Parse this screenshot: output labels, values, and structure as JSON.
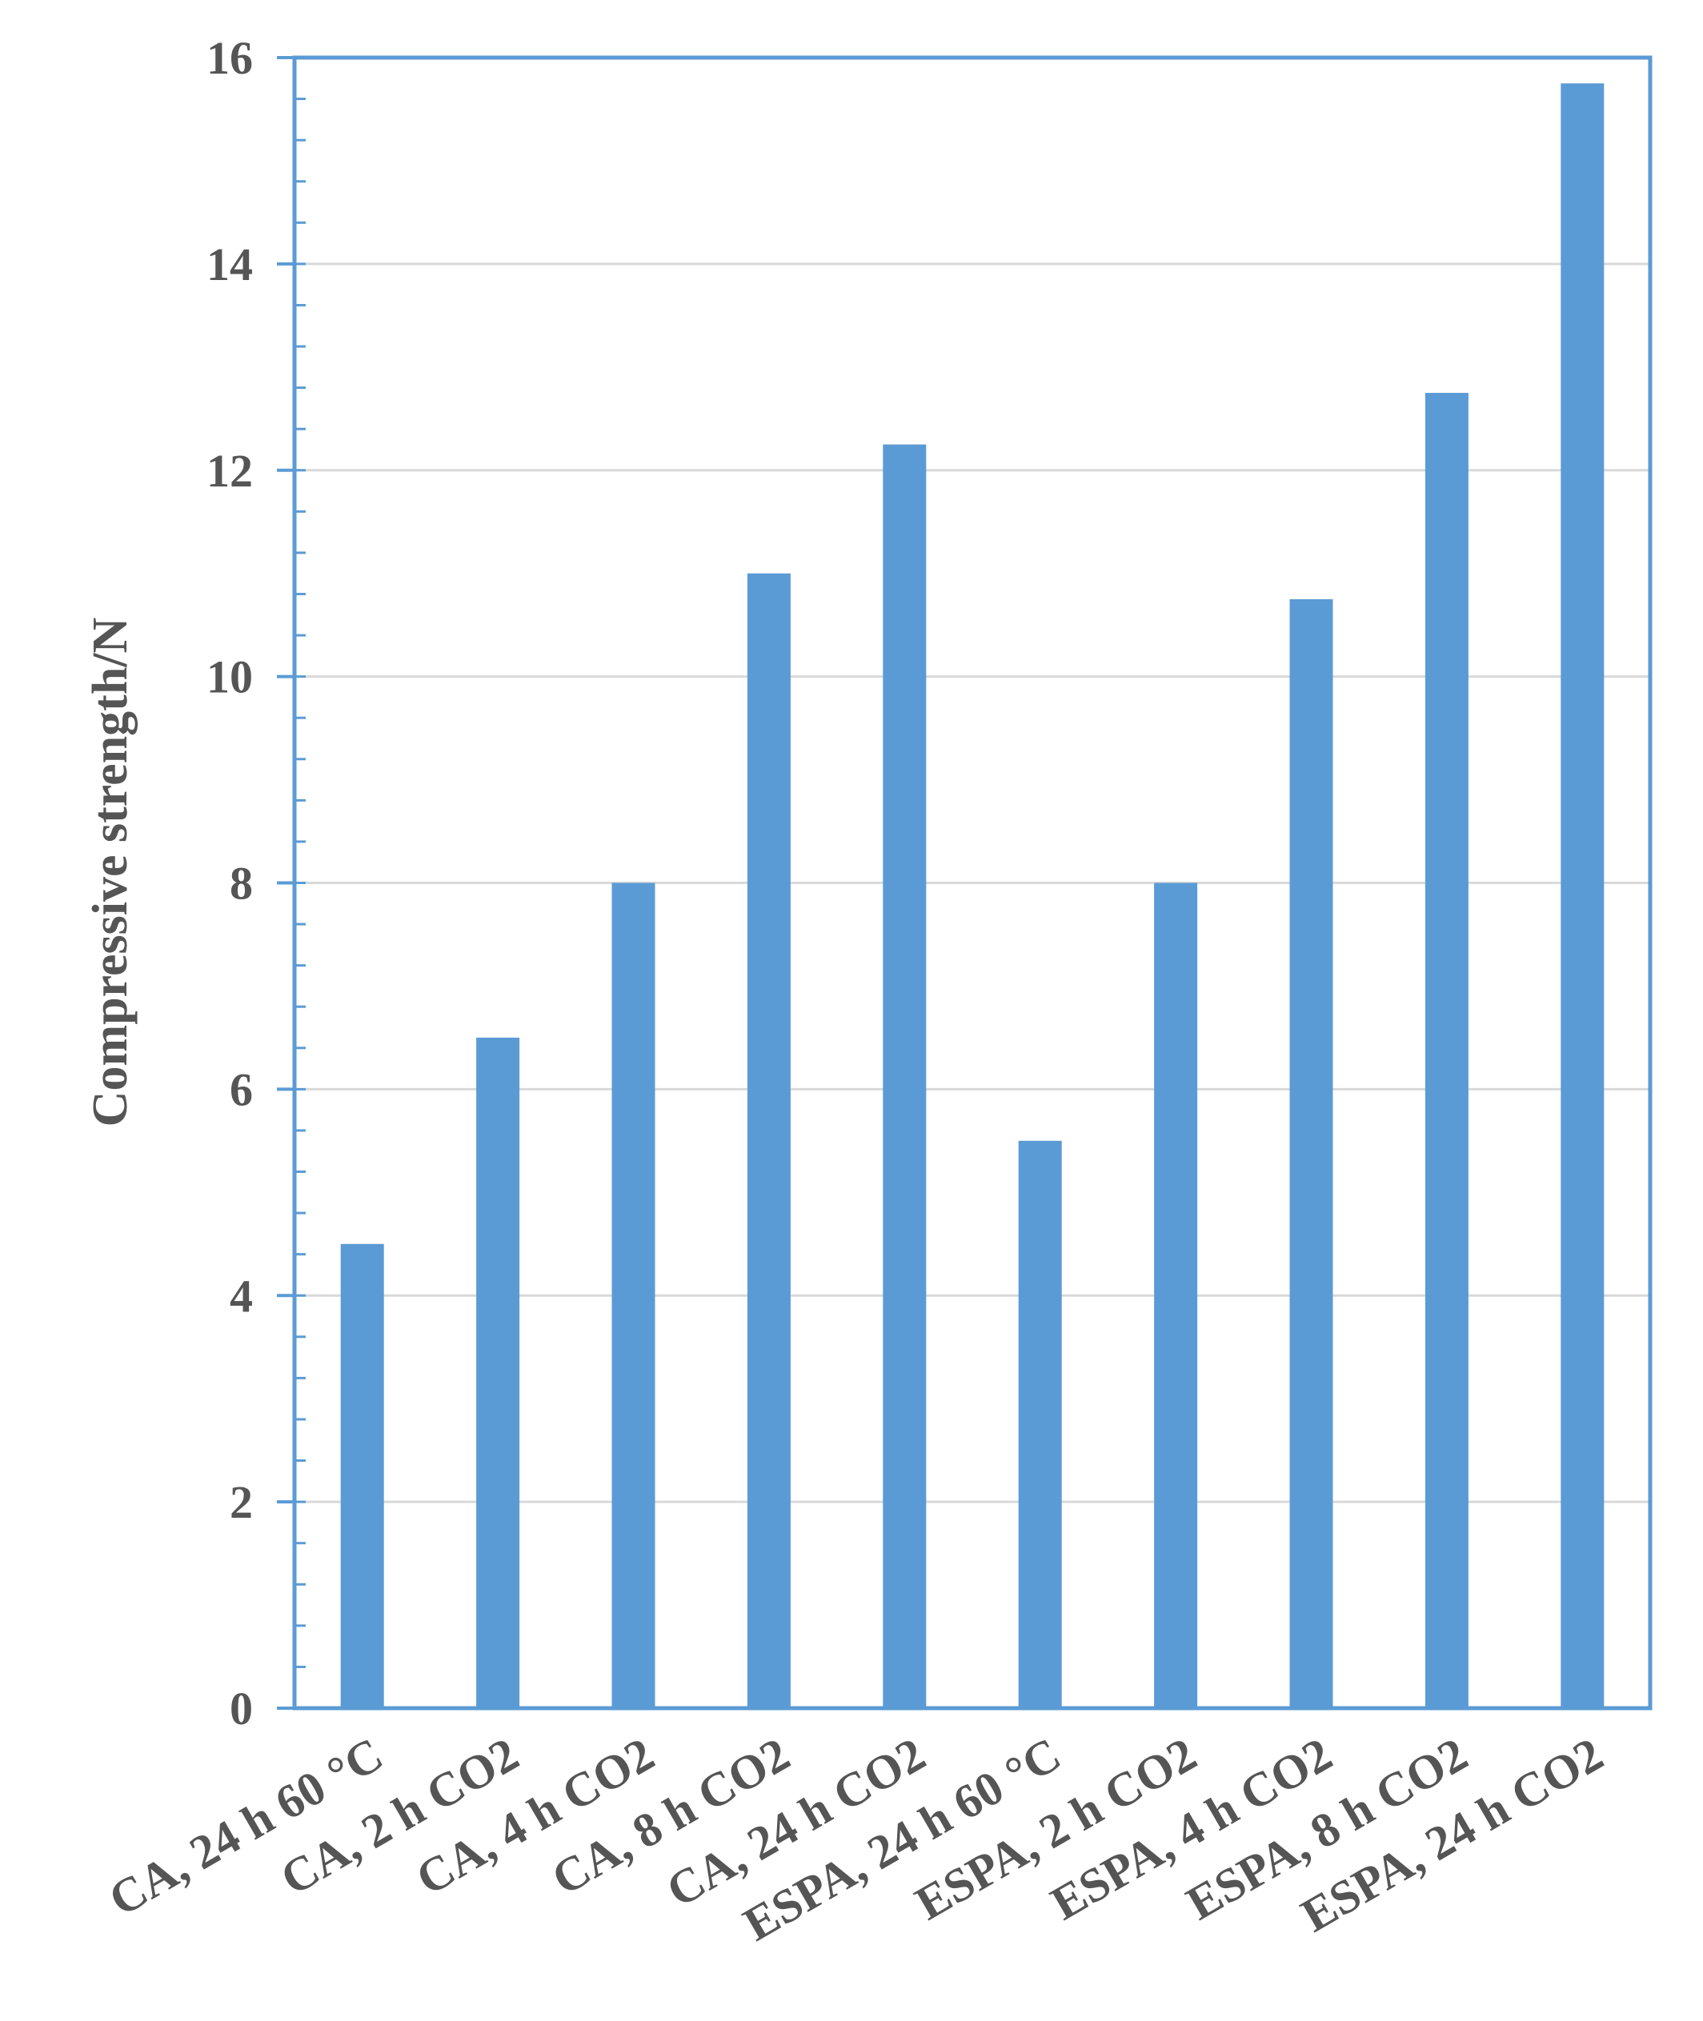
{
  "chart_data": {
    "type": "bar",
    "title": "",
    "xlabel": "",
    "ylabel": "Compressive strength/N",
    "ylim": [
      0,
      16
    ],
    "yticks": [
      0,
      2,
      4,
      6,
      8,
      10,
      12,
      14,
      16
    ],
    "grid": true,
    "legend": "none",
    "categories": [
      "CA, 24 h 60 °C",
      "CA, 2 h CO2",
      "CA, 4 h CO2",
      "CA, 8 h CO2",
      "CA, 24 h CO2",
      "ESPA, 24 h 60 °C",
      "ESPA, 2 h CO2",
      "ESPA, 4 h CO2",
      "ESPA, 8 h CO2",
      "ESPA, 24 h CO2"
    ],
    "values": [
      4.5,
      6.5,
      8.0,
      11.0,
      12.25,
      5.5,
      8.0,
      10.75,
      12.75,
      15.75
    ],
    "colors": {
      "bar": "#5b9bd5",
      "axis": "#5b9bd5",
      "grid": "#d9d9d9",
      "text": "#555555"
    }
  }
}
